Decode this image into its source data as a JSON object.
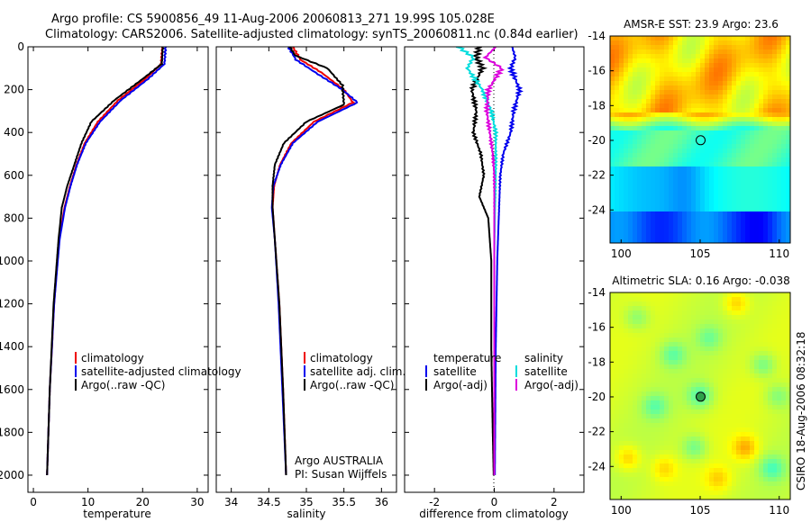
{
  "title_line1": "Argo profile: CS 5900856_49 11-Aug-2006 20060813_271 19.99S 105.028E",
  "title_line2": "Climatology: CARS2006. Satellite-adjusted climatology: synTS_20060811.nc (0.84d earlier)",
  "colors": {
    "climatology": "#ee0000",
    "satellite": "#0000ee",
    "argo": "#000000",
    "salinity_satellite": "#00dddd",
    "salinity_argo": "#dd00dd"
  },
  "chart_data": [
    {
      "type": "line",
      "name": "temperature",
      "xlabel": "temperature",
      "xlim": [
        -1,
        32
      ],
      "ylim": [
        2080,
        0
      ],
      "xticks": [
        0,
        10,
        20,
        30
      ],
      "yticks": [
        0,
        200,
        400,
        600,
        800,
        1000,
        1200,
        1400,
        1600,
        1800,
        2000
      ],
      "legend": [
        "climatology",
        "satellite-adjusted climatology",
        "Argo(..raw -QC)"
      ],
      "series": [
        {
          "name": "climatology",
          "color": "#ee0000",
          "depth": [
            0,
            80,
            150,
            250,
            350,
            450,
            550,
            650,
            750,
            900,
            1200,
            1600,
            2000
          ],
          "values": [
            23.6,
            23.4,
            20.5,
            15.5,
            11.8,
            9.4,
            7.9,
            6.7,
            5.7,
            4.7,
            3.8,
            3.0,
            2.5
          ]
        },
        {
          "name": "satellite-adjusted climatology",
          "color": "#0000ee",
          "depth": [
            0,
            80,
            150,
            250,
            350,
            450,
            550,
            650,
            750,
            900,
            1200,
            1600,
            2000
          ],
          "values": [
            24.2,
            24.0,
            21.0,
            16.0,
            12.2,
            9.6,
            8.0,
            6.8,
            5.8,
            4.8,
            3.8,
            3.0,
            2.5
          ]
        },
        {
          "name": "Argo(..raw -QC)",
          "color": "#000000",
          "depth": [
            0,
            80,
            150,
            250,
            350,
            450,
            550,
            650,
            750,
            900,
            1200,
            1600,
            2000
          ],
          "values": [
            23.7,
            23.5,
            20.0,
            14.8,
            10.6,
            8.8,
            7.5,
            6.2,
            5.2,
            4.6,
            3.7,
            3.0,
            2.5
          ]
        }
      ]
    },
    {
      "type": "line",
      "name": "salinity",
      "xlabel": "salinity",
      "xlim": [
        33.8,
        36.2
      ],
      "ylim": [
        2080,
        0
      ],
      "xticks": [
        34,
        34.5,
        35,
        35.5,
        36
      ],
      "legend": [
        "climatology",
        "satellite adj. clim.",
        "Argo(..raw -QC)"
      ],
      "series": [
        {
          "name": "climatology",
          "color": "#ee0000",
          "depth": [
            0,
            60,
            120,
            200,
            260,
            350,
            450,
            550,
            650,
            750,
            900,
            1200,
            1600,
            2000
          ],
          "values": [
            34.82,
            34.92,
            35.2,
            35.5,
            35.62,
            35.1,
            34.8,
            34.65,
            34.57,
            34.55,
            34.58,
            34.64,
            34.69,
            34.73
          ]
        },
        {
          "name": "satellite adj. clim.",
          "color": "#0000ee",
          "depth": [
            0,
            60,
            120,
            200,
            260,
            350,
            450,
            550,
            650,
            750,
            900,
            1200,
            1600,
            2000
          ],
          "values": [
            34.76,
            34.86,
            35.12,
            35.48,
            35.68,
            35.15,
            34.82,
            34.66,
            34.56,
            34.54,
            34.58,
            34.63,
            34.68,
            34.73
          ]
        },
        {
          "name": "Argo(..raw -QC)",
          "color": "#000000",
          "depth": [
            0,
            40,
            100,
            180,
            270,
            350,
            450,
            550,
            650,
            750,
            900,
            1200,
            1600,
            2000
          ],
          "values": [
            34.78,
            34.85,
            35.28,
            35.48,
            35.5,
            35.0,
            34.7,
            34.58,
            34.55,
            34.55,
            34.58,
            34.64,
            34.69,
            34.73
          ]
        }
      ]
    },
    {
      "type": "line",
      "name": "difference",
      "xlabel": "difference from climatology",
      "xlim": [
        -3,
        3
      ],
      "ylim": [
        2080,
        0
      ],
      "xticks": [
        -2,
        0,
        2
      ],
      "legend_temperature": [
        "temperature",
        "satellite",
        "Argo(-adj)"
      ],
      "legend_salinity": [
        "salinity",
        "satellite",
        "Argo(-adj)"
      ],
      "series": [
        {
          "name": "temperature satellite",
          "color": "#0000ee",
          "depth": [
            0,
            50,
            100,
            200,
            300,
            400,
            500,
            600,
            800,
            1000,
            1400,
            1800,
            2000
          ],
          "values": [
            0.6,
            0.7,
            0.55,
            0.85,
            0.65,
            0.55,
            0.3,
            0.2,
            0.15,
            0.1,
            0.05,
            0.03,
            0.02
          ]
        },
        {
          "name": "temperature Argo(-adj)",
          "color": "#000000",
          "depth": [
            0,
            50,
            100,
            200,
            300,
            400,
            500,
            600,
            700,
            800,
            1000,
            1400,
            1800,
            2000
          ],
          "values": [
            -0.5,
            -0.6,
            -0.4,
            -0.75,
            -0.6,
            -0.7,
            -0.45,
            -0.35,
            -0.5,
            -0.2,
            -0.1,
            -0.1,
            -0.05,
            -0.02
          ]
        },
        {
          "name": "salinity satellite",
          "color": "#00dddd",
          "depth": [
            0,
            50,
            100,
            200,
            300,
            400,
            600,
            800,
            1000,
            1400,
            1800,
            2000
          ],
          "values": [
            -1.2,
            -0.7,
            -0.9,
            -0.4,
            -0.1,
            0.05,
            0.05,
            0.02,
            0.0,
            0.0,
            0.0,
            0.0
          ]
        },
        {
          "name": "salinity Argo(-adj)",
          "color": "#dd00dd",
          "depth": [
            0,
            50,
            100,
            200,
            300,
            400,
            500,
            600,
            800,
            1000,
            1400,
            1800,
            2000
          ],
          "values": [
            0.05,
            -0.3,
            0.25,
            -0.2,
            -0.25,
            -0.15,
            -0.05,
            0.0,
            0.0,
            0.0,
            0.0,
            0.0,
            0.0
          ]
        }
      ]
    },
    {
      "type": "heatmap",
      "name": "sst-map",
      "title": "AMSR-E SST: 23.9 Argo: 23.6",
      "xlim": [
        99.3,
        110.7
      ],
      "ylim": [
        -25.9,
        -14
      ],
      "xticks": [
        100,
        105,
        110
      ],
      "yticks": [
        -14,
        -16,
        -18,
        -20,
        -22,
        -24
      ],
      "marker": {
        "x": 105.03,
        "y": -19.99
      }
    },
    {
      "type": "heatmap",
      "name": "sla-map",
      "title": "Altimetric SLA: 0.16 Argo: -0.038",
      "xlim": [
        99.3,
        110.7
      ],
      "ylim": [
        -25.9,
        -14
      ],
      "xticks": [
        100,
        105,
        110
      ],
      "yticks": [
        -14,
        -16,
        -18,
        -20,
        -22,
        -24
      ],
      "marker": {
        "x": 105.03,
        "y": -19.99
      }
    }
  ],
  "footer": {
    "argo_country": "Argo AUSTRALIA",
    "pi": "PI: Susan Wijffels",
    "stamp": "CSIRO 18-Aug-2006 08:32:18"
  }
}
